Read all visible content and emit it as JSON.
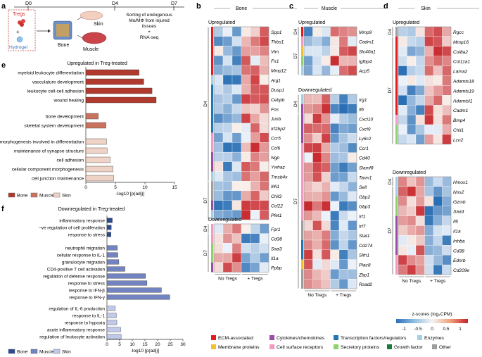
{
  "panels": {
    "a": "a",
    "b": "b",
    "c": "c",
    "d": "d",
    "e": "e",
    "f": "f"
  },
  "a": {
    "timeline": [
      "D0",
      "D4",
      "D7"
    ],
    "tregs": "Tregs",
    "plus": "+",
    "hydrogel": "Hydrogel",
    "bone": "Bone",
    "skin": "Skin",
    "muscle": "Muscle",
    "desc_line1": "Sorting of endogenous",
    "desc_line2": "Mo/MΦ from injured",
    "desc_line3": "tissues",
    "desc_line4": "+",
    "desc_line5": "RNA-seq"
  },
  "heatmaps": {
    "upregulated": "Upregulated",
    "downregulated": "Downregulated",
    "d4": "D4",
    "d7": "D7",
    "no_tregs": "No Tregs",
    "plus_tregs": "+ Tregs",
    "bone": {
      "title": "Bone",
      "up_genes": [
        "Spp1",
        "Thbs1",
        "Vim",
        "Fn1",
        "Mmp12",
        "Arg1",
        "Dusp1",
        "Cebpb",
        "Fos",
        "Junb",
        "Irf2bp2",
        "Ccr5",
        "Ccl6",
        "Ngp",
        "Ywhaz",
        "Tmsb4x",
        "Il4i1",
        "Chil3",
        "Ccl22",
        "Pfet1"
      ],
      "down_genes": [
        "Fpr1",
        "Cd38",
        "Saa3",
        "Il1a",
        "Ppbp"
      ]
    },
    "muscle": {
      "title": "Muscle",
      "up_genes": [
        "Mmp9",
        "Cadm1",
        "Slc40a1",
        "Igfbp4",
        "Acp5"
      ],
      "down_genes": [
        "Irg1",
        "Il6",
        "Cxcl10",
        "Cxcl9",
        "Ly6c2",
        "Ccr1",
        "Cd40",
        "Slamf8",
        "Tarm1",
        "Sell",
        "Gbp2",
        "Gbp3",
        "Irf1",
        "Irf7",
        "Stat1",
        "Cd274",
        "Slfn1",
        "Plac8",
        "Zbp1",
        "Rsad2"
      ]
    },
    "skin": {
      "title": "Skin",
      "up_genes": [
        "Rgcc",
        "Mmp16",
        "Col8a2",
        "Col11a1",
        "Lama2",
        "Adamts18",
        "Adamts19",
        "Adamtsl1",
        "Cadm1",
        "Bmp4",
        "Chil1",
        "Lcn2"
      ],
      "down_genes": [
        "Hmox1",
        "Nos2",
        "Gzmb",
        "Saa3",
        "Il6",
        "Il1a",
        "Inhba",
        "Cd38",
        "Ednrb",
        "Cd209e"
      ]
    }
  },
  "colorbar": {
    "title": "z-scores (log₂CPM)",
    "ticks": [
      "-1",
      "-0.5",
      "0",
      "0.5",
      "1"
    ]
  },
  "legend_categories": [
    {
      "label": "ECM-associated",
      "color": "#e41a1c"
    },
    {
      "label": "Cytokines/chemokines",
      "color": "#984ea3"
    },
    {
      "label": "Transcription factors/regulators",
      "color": "#1f78b4"
    },
    {
      "label": "Enzymes",
      "color": "#a6cee3"
    },
    {
      "label": "Membrane proteins",
      "color": "#f2c12e"
    },
    {
      "label": "Cell surface receptors",
      "color": "#f49ac2"
    },
    {
      "label": "Secretory proteins",
      "color": "#8fd16f"
    },
    {
      "label": "Growth factor",
      "color": "#1a7a3a"
    },
    {
      "label": "Other",
      "color": "#9e9e9e"
    }
  ],
  "chart_data": [
    {
      "type": "bar",
      "orientation": "horizontal",
      "title": "Upregulated in Treg-treated",
      "xlabel": "-log10 [p(adj)]",
      "xlim": [
        0,
        15
      ],
      "xticks": [
        "0",
        "5",
        "10",
        "15"
      ],
      "categories": [
        "myeloid leukocyte differentiation",
        "vasculature development",
        "leukocyte cell-cell adhesion",
        "wound healing",
        "bone development",
        "skeletal system development",
        "cell morphogenesis involved in differentiation",
        "maintenance of synapse structure",
        "cell adhesion",
        "cellular component morphogenesis",
        "cell junction maintenance"
      ],
      "values": [
        9.0,
        9.8,
        11.2,
        11.9,
        2.1,
        3.4,
        3.5,
        3.6,
        4.1,
        4.6,
        4.7
      ],
      "groups": [
        "Bone",
        "Bone",
        "Bone",
        "Bone",
        "Muscle",
        "Muscle",
        "Skin",
        "Skin",
        "Skin",
        "Skin",
        "Skin"
      ],
      "legend": [
        {
          "name": "Bone",
          "color": "#b13a2e"
        },
        {
          "name": "Muscle",
          "color": "#c9735f"
        },
        {
          "name": "Skin",
          "color": "#efd3c6"
        }
      ]
    },
    {
      "type": "bar",
      "orientation": "horizontal",
      "title": "Downregulated in Treg-treated",
      "xlabel": "-log10 [p(adj)]",
      "xlim": [
        0,
        30
      ],
      "xticks": [
        "0",
        "5",
        "10",
        "15",
        "20",
        "25",
        "30"
      ],
      "categories": [
        "inflammatory response",
        "–ve regulation of cell proliferation",
        "response to stress",
        "neutrophil migration",
        "cellular response to IL-1",
        "granulocyte migration",
        "CD4-positive T cell activation",
        "regulation of defense response",
        "response to stress",
        "response to IFN-β",
        "response to IFN-γ",
        "regulation of IL-6 production",
        "response to IL-1",
        "response to hypoxia",
        "acute inflammatory response",
        "regulation of leukocyte activation"
      ],
      "values": [
        2.1,
        1.7,
        1.6,
        4.1,
        4.3,
        4.7,
        7.1,
        15.2,
        15.8,
        21.5,
        24.8,
        3.3,
        3.7,
        3.9,
        5.4,
        5.6
      ],
      "groups": [
        "Bone",
        "Bone",
        "Bone",
        "Muscle",
        "Muscle",
        "Muscle",
        "Muscle",
        "Muscle",
        "Muscle",
        "Muscle",
        "Muscle",
        "Skin",
        "Skin",
        "Skin",
        "Skin",
        "Skin"
      ],
      "legend": [
        {
          "name": "Bone",
          "color": "#2e4a8f"
        },
        {
          "name": "Muscle",
          "color": "#7283c2"
        },
        {
          "name": "Skin",
          "color": "#c0c9ea"
        }
      ]
    }
  ]
}
